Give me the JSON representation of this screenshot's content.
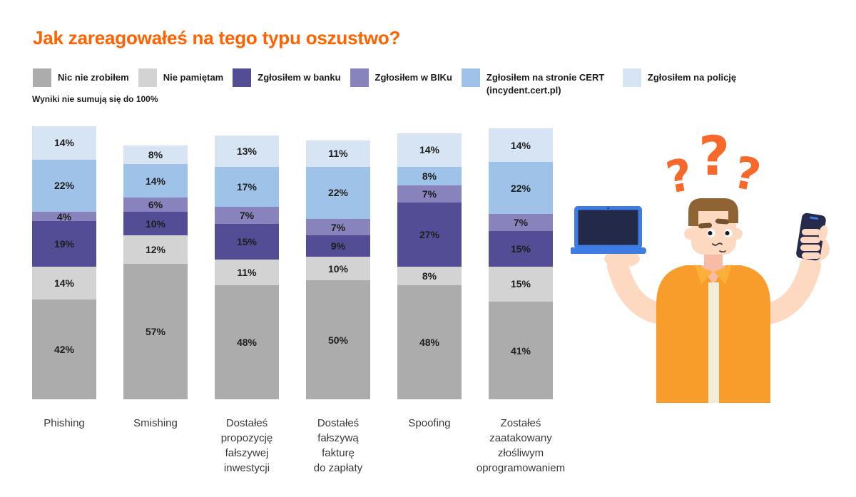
{
  "chart_data": {
    "type": "bar",
    "stacked": true,
    "unit": "%",
    "title": "Jak zareagowałeś na tego typu oszustwo?",
    "note": "Wyniki nie sumują się do 100%",
    "legend_position": "top",
    "grid": false,
    "value_labels": "inside-segments",
    "categories": [
      "Phishing",
      "Smishing",
      "Dostałeś propozycję fałszywej inwestycji",
      "Dostałeś fałszywą fakturę do zapłaty",
      "Spoofing",
      "Zostałeś zaatakowany złośliwym oprogramowaniem"
    ],
    "category_lines": [
      [
        "Phishing"
      ],
      [
        "Smishing"
      ],
      [
        "Dostałeś",
        "propozycję",
        "fałszywej",
        "inwestycji"
      ],
      [
        "Dostałeś",
        "fałszywą",
        "fakturę",
        "do zapłaty"
      ],
      [
        "Spoofing"
      ],
      [
        "Zostałeś",
        "zaatakowany",
        "złośliwym",
        "oprogramowaniem"
      ]
    ],
    "series": [
      {
        "name": "Nic nie zrobiłem",
        "color": "#ACACAC",
        "values": [
          42,
          57,
          48,
          50,
          48,
          41
        ]
      },
      {
        "name": "Nie pamiętam",
        "color": "#D3D3D3",
        "values": [
          14,
          12,
          11,
          10,
          8,
          15
        ]
      },
      {
        "name": "Zgłosiłem w banku",
        "color": "#534D96",
        "values": [
          19,
          10,
          15,
          9,
          27,
          15
        ]
      },
      {
        "name": "Zgłosiłem w BIKu",
        "color": "#8983BD",
        "values": [
          4,
          6,
          7,
          7,
          7,
          7
        ]
      },
      {
        "name": "Zgłosiłem na stronie CERT (incydent.cert.pl)",
        "color": "#9FC3E8",
        "values": [
          22,
          14,
          17,
          22,
          8,
          22
        ]
      },
      {
        "name": "Zgłosiłem na policję",
        "color": "#D7E4F4",
        "values": [
          14,
          8,
          13,
          11,
          14,
          14
        ]
      }
    ]
  },
  "style": {
    "title_color": "#FF6200",
    "value_label_color": "#1d1d1d",
    "category_label_color": "#3a3a3a"
  },
  "illustration": {
    "name": "confused-man-holding-laptop-and-phone",
    "colors": {
      "question_marks": "#F8682B",
      "skin": "#FCD9C0",
      "neck": "#F6BCA6",
      "hair": "#8F6333",
      "brow": "#75522D",
      "shirt": "#F89C2C",
      "collar": "#FBB03C",
      "tee": "#F2ECD9",
      "laptop": "#3D7CE3",
      "screen": "#232949",
      "phone": "#262B4D",
      "ink": "#3a3a3a"
    }
  }
}
